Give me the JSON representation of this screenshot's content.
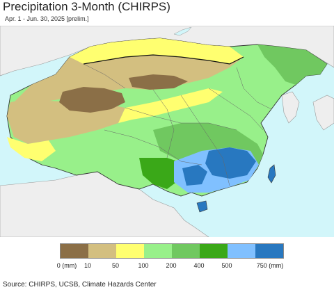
{
  "title": "Precipitation 3-Month (CHIRPS)",
  "subtitle": "Apr. 1 - Jun. 30, 2025 [prelim.]",
  "source": "Source: CHIRPS, UCSB, Climate Hazards Center",
  "legend": {
    "labels": [
      "0 (mm)",
      "10",
      "50",
      "100",
      "200",
      "400",
      "500",
      "750 (mm)"
    ],
    "colors": [
      "#8b6f47",
      "#d3bf80",
      "#ffff70",
      "#98f08a",
      "#70c860",
      "#3aa818",
      "#80c0ff",
      "#2878c0"
    ]
  },
  "colors": {
    "water": "#d2f6fa",
    "outside_land": "#eeeeee",
    "border": "#333333"
  }
}
